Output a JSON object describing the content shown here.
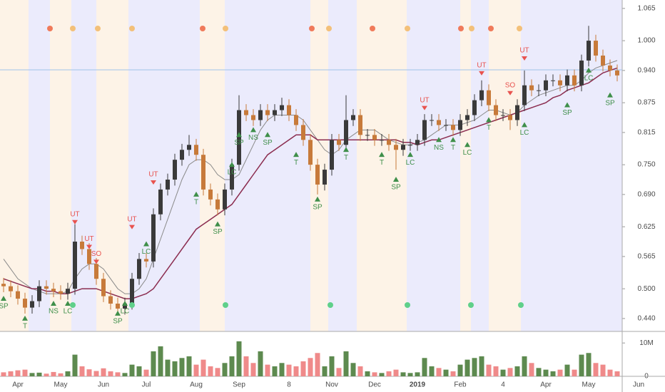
{
  "chart_data": {
    "type": "candlestick",
    "categories": [
      null,
      null,
      "Apr",
      null,
      null,
      null,
      null,
      null,
      "May",
      null,
      null,
      null,
      null,
      null,
      "Jun",
      null,
      null,
      null,
      null,
      null,
      "Jul",
      null,
      null,
      null,
      null,
      null,
      null,
      "Aug",
      null,
      null,
      null,
      null,
      null,
      "Sep",
      null,
      null,
      null,
      null,
      null,
      null,
      "8",
      null,
      null,
      null,
      null,
      null,
      "Nov",
      null,
      null,
      null,
      null,
      null,
      "Dec",
      null,
      null,
      null,
      null,
      null,
      "2019",
      null,
      null,
      null,
      null,
      null,
      "Feb",
      null,
      null,
      null,
      null,
      null,
      "4",
      null,
      null,
      null,
      null,
      null,
      "Apr",
      null,
      null,
      null,
      null,
      null,
      "May",
      null,
      null,
      null,
      null,
      null,
      null,
      "Jun"
    ],
    "open": [
      0.51,
      0.505,
      0.495,
      0.48,
      0.462,
      0.475,
      0.505,
      0.5,
      0.495,
      0.49,
      0.5,
      0.595,
      0.58,
      0.55,
      0.52,
      0.485,
      0.47,
      0.46,
      0.47,
      0.52,
      0.56,
      0.555,
      0.65,
      0.7,
      0.72,
      0.76,
      0.78,
      0.79,
      0.77,
      0.7,
      0.68,
      0.66,
      0.7,
      0.75,
      0.86,
      0.85,
      0.84,
      0.86,
      0.85,
      0.86,
      0.87,
      0.85,
      0.83,
      0.8,
      0.75,
      0.71,
      0.74,
      0.8,
      0.79,
      0.84,
      0.85,
      0.81,
      0.81,
      0.8,
      0.8,
      0.79,
      0.78,
      0.79,
      0.79,
      0.8,
      0.84,
      0.84,
      0.83,
      0.83,
      0.82,
      0.84,
      0.85,
      0.88,
      0.9,
      0.87,
      0.85,
      0.85,
      0.84,
      0.87,
      0.91,
      0.9,
      0.9,
      0.92,
      0.92,
      0.91,
      0.93,
      0.91,
      0.96,
      1.0,
      0.97,
      0.95,
      0.94,
      null,
      null,
      null
    ],
    "high": [
      0.522,
      0.517,
      0.507,
      0.492,
      0.487,
      0.517,
      0.517,
      0.512,
      0.507,
      0.512,
      0.63,
      0.607,
      0.592,
      0.562,
      0.532,
      0.497,
      0.482,
      0.482,
      0.532,
      0.572,
      0.572,
      0.662,
      0.712,
      0.732,
      0.772,
      0.792,
      0.81,
      0.802,
      0.782,
      0.712,
      0.692,
      0.712,
      0.762,
      0.89,
      0.872,
      0.862,
      0.872,
      0.872,
      0.872,
      0.885,
      0.882,
      0.862,
      0.842,
      0.812,
      0.762,
      0.752,
      0.812,
      0.812,
      0.89,
      0.862,
      0.862,
      0.822,
      0.822,
      0.812,
      0.812,
      0.802,
      0.802,
      0.802,
      0.812,
      0.852,
      0.852,
      0.852,
      0.842,
      0.842,
      0.852,
      0.862,
      0.892,
      0.92,
      0.912,
      0.882,
      0.862,
      0.862,
      0.882,
      0.94,
      0.922,
      0.912,
      0.932,
      0.932,
      0.932,
      0.942,
      0.942,
      0.972,
      1.03,
      1.012,
      0.982,
      0.962,
      0.952,
      null,
      null,
      null
    ],
    "low": [
      0.493,
      0.483,
      0.468,
      0.45,
      0.45,
      0.463,
      0.488,
      0.483,
      0.478,
      0.478,
      0.488,
      0.568,
      0.538,
      0.508,
      0.473,
      0.458,
      0.448,
      0.448,
      0.458,
      0.508,
      0.543,
      0.543,
      0.638,
      0.688,
      0.708,
      0.748,
      0.768,
      0.758,
      0.688,
      0.668,
      0.648,
      0.648,
      0.688,
      0.738,
      0.838,
      0.828,
      0.828,
      0.838,
      0.838,
      0.848,
      0.838,
      0.818,
      0.788,
      0.738,
      0.69,
      0.698,
      0.728,
      0.778,
      0.778,
      0.828,
      0.798,
      0.798,
      0.788,
      0.788,
      0.778,
      0.74,
      0.768,
      0.778,
      0.778,
      0.788,
      0.828,
      0.818,
      0.818,
      0.808,
      0.808,
      0.828,
      0.838,
      0.868,
      0.858,
      0.838,
      0.838,
      0.82,
      0.828,
      0.858,
      0.888,
      0.888,
      0.888,
      0.908,
      0.898,
      0.898,
      0.898,
      0.898,
      0.948,
      0.958,
      0.938,
      0.928,
      0.918,
      null,
      null,
      null
    ],
    "close": [
      0.505,
      0.495,
      0.48,
      0.462,
      0.475,
      0.505,
      0.5,
      0.495,
      0.49,
      0.5,
      0.595,
      0.58,
      0.55,
      0.52,
      0.485,
      0.47,
      0.46,
      0.47,
      0.52,
      0.56,
      0.555,
      0.65,
      0.7,
      0.72,
      0.76,
      0.78,
      0.79,
      0.77,
      0.7,
      0.68,
      0.66,
      0.7,
      0.75,
      0.86,
      0.85,
      0.84,
      0.86,
      0.85,
      0.86,
      0.87,
      0.85,
      0.83,
      0.8,
      0.75,
      0.71,
      0.74,
      0.8,
      0.79,
      0.84,
      0.85,
      0.81,
      0.81,
      0.8,
      0.8,
      0.79,
      0.78,
      0.79,
      0.79,
      0.8,
      0.84,
      0.84,
      0.83,
      0.83,
      0.82,
      0.84,
      0.85,
      0.88,
      0.9,
      0.87,
      0.85,
      0.85,
      0.84,
      0.87,
      0.91,
      0.9,
      0.9,
      0.92,
      0.92,
      0.91,
      0.93,
      0.91,
      0.96,
      1.0,
      0.97,
      0.95,
      0.94,
      0.93,
      null,
      null,
      null
    ],
    "volume": [
      1200000,
      1500000,
      1800000,
      2000000,
      1000000,
      1100000,
      800000,
      1300000,
      900000,
      1500000,
      6500000,
      3000000,
      2100000,
      1600000,
      2400000,
      1500000,
      1200000,
      1000000,
      3500000,
      3000000,
      2000000,
      7500000,
      9000000,
      5000000,
      4500000,
      5500000,
      6000000,
      3500000,
      5000000,
      3000000,
      2500000,
      4000000,
      6000000,
      10500000,
      6000000,
      4000000,
      7500000,
      3500000,
      3000000,
      4000000,
      3500000,
      3000000,
      4500000,
      5500000,
      7000000,
      3000000,
      6000000,
      2500000,
      7500000,
      4000000,
      3000000,
      1500000,
      1200000,
      1000000,
      1500000,
      2000000,
      1200000,
      1000000,
      1200000,
      5500000,
      3000000,
      2500000,
      2000000,
      1500000,
      3500000,
      5000000,
      5500000,
      6000000,
      3500000,
      3000000,
      2000000,
      2500000,
      3000000,
      6000000,
      4000000,
      2500000,
      2000000,
      1500000,
      2000000,
      3500000,
      2000000,
      6500000,
      7000000,
      4000000,
      3500000,
      2000000,
      1500000,
      null,
      null,
      null
    ],
    "moving_averages": [
      {
        "color": "#8a8a8a",
        "values": [
          0.56,
          0.54,
          0.52,
          0.51,
          0.5,
          0.495,
          0.49,
          0.49,
          0.49,
          0.495,
          0.52,
          0.54,
          0.55,
          0.55,
          0.54,
          0.52,
          0.5,
          0.49,
          0.49,
          0.5,
          0.52,
          0.56,
          0.6,
          0.64,
          0.68,
          0.72,
          0.75,
          0.76,
          0.76,
          0.75,
          0.73,
          0.72,
          0.72,
          0.73,
          0.76,
          0.79,
          0.82,
          0.84,
          0.85,
          0.85,
          0.85,
          0.85,
          0.84,
          0.82,
          0.8,
          0.78,
          0.77,
          0.78,
          0.8,
          0.81,
          0.82,
          0.82,
          0.82,
          0.81,
          0.8,
          0.795,
          0.79,
          0.79,
          0.795,
          0.8,
          0.81,
          0.82,
          0.83,
          0.83,
          0.83,
          0.835,
          0.84,
          0.85,
          0.86,
          0.86,
          0.855,
          0.85,
          0.855,
          0.87,
          0.88,
          0.89,
          0.895,
          0.9,
          0.905,
          0.91,
          0.91,
          0.92,
          0.935,
          0.945,
          0.95,
          0.955,
          0.96,
          null,
          null,
          null
        ]
      },
      {
        "color": "#8b2c4f",
        "values": [
          0.52,
          0.515,
          0.51,
          0.505,
          0.5,
          0.5,
          0.495,
          0.495,
          0.49,
          0.49,
          0.495,
          0.5,
          0.5,
          0.5,
          0.495,
          0.49,
          0.485,
          0.48,
          0.48,
          0.485,
          0.49,
          0.5,
          0.52,
          0.54,
          0.56,
          0.58,
          0.6,
          0.62,
          0.63,
          0.64,
          0.65,
          0.66,
          0.67,
          0.69,
          0.71,
          0.73,
          0.75,
          0.77,
          0.78,
          0.79,
          0.8,
          0.81,
          0.81,
          0.81,
          0.8,
          0.8,
          0.8,
          0.8,
          0.8,
          0.8,
          0.8,
          0.8,
          0.8,
          0.8,
          0.8,
          0.8,
          0.795,
          0.795,
          0.79,
          0.795,
          0.8,
          0.8,
          0.805,
          0.81,
          0.815,
          0.82,
          0.825,
          0.83,
          0.835,
          0.84,
          0.845,
          0.85,
          0.855,
          0.86,
          0.865,
          0.87,
          0.875,
          0.885,
          0.89,
          0.9,
          0.905,
          0.91,
          0.915,
          0.925,
          0.935,
          0.94,
          0.945,
          null,
          null,
          null
        ]
      }
    ],
    "up_color": "#3a3a3a",
    "down_color": "#c77a3a",
    "volume_up_color": "#5d8a4f",
    "volume_down_color": "#ef8a8a",
    "ylim": [
      0.414,
      1.082
    ],
    "yticks": [
      {
        "value": 1.065,
        "label": "1.065"
      },
      {
        "value": 1.0,
        "label": "1.000"
      },
      {
        "value": 0.94,
        "label": "0.940"
      },
      {
        "value": 0.875,
        "label": "0.875"
      },
      {
        "value": 0.815,
        "label": "0.815"
      },
      {
        "value": 0.75,
        "label": "0.750"
      },
      {
        "value": 0.69,
        "label": "0.690"
      },
      {
        "value": 0.625,
        "label": "0.625"
      },
      {
        "value": 0.565,
        "label": "0.565"
      },
      {
        "value": 0.5,
        "label": "0.500"
      },
      {
        "value": 0.44,
        "label": "0.440"
      }
    ],
    "volume_ylim": [
      0,
      12400000
    ],
    "volume_yticks": [
      {
        "value": 10000000,
        "label": "10M"
      },
      0
    ],
    "annotations": [
      {
        "text": "UT",
        "index": 10,
        "value": 0.65,
        "color": "#e8534f"
      },
      {
        "text": "UT",
        "index": 12,
        "value": 0.6,
        "color": "#e8534f"
      },
      {
        "text": "SO",
        "index": 13,
        "value": 0.57,
        "color": "#e8534f"
      },
      {
        "text": "UT",
        "index": 18,
        "value": 0.64,
        "color": "#e8534f"
      },
      {
        "text": "UT",
        "index": 21,
        "value": 0.73,
        "color": "#e8534f"
      },
      {
        "text": "SP",
        "index": 0,
        "value": 0.47,
        "color": "#3f8f4a"
      },
      {
        "text": "T",
        "index": 3,
        "value": 0.43,
        "color": "#3f8f4a"
      },
      {
        "text": "NS",
        "index": 7,
        "value": 0.46,
        "color": "#3f8f4a"
      },
      {
        "text": "LC",
        "index": 9,
        "value": 0.46,
        "color": "#3f8f4a"
      },
      {
        "text": "SP",
        "index": 16,
        "value": 0.44,
        "color": "#3f8f4a"
      },
      {
        "text": "LC",
        "index": 17,
        "value": 0.46,
        "color": "#3f8f4a"
      },
      {
        "text": "LC",
        "index": 20,
        "value": 0.58,
        "color": "#3f8f4a"
      },
      {
        "text": "T",
        "index": 27,
        "value": 0.68,
        "color": "#3f8f4a"
      },
      {
        "text": "SP",
        "index": 30,
        "value": 0.62,
        "color": "#3f8f4a"
      },
      {
        "text": "LC",
        "index": 32,
        "value": 0.74,
        "color": "#3f8f4a"
      },
      {
        "text": "SP",
        "index": 33,
        "value": 0.8,
        "color": "#3f8f4a"
      },
      {
        "text": "NS",
        "index": 35,
        "value": 0.81,
        "color": "#3f8f4a"
      },
      {
        "text": "SP",
        "index": 37,
        "value": 0.8,
        "color": "#3f8f4a"
      },
      {
        "text": "T",
        "index": 41,
        "value": 0.76,
        "color": "#3f8f4a"
      },
      {
        "text": "SP",
        "index": 44,
        "value": 0.67,
        "color": "#3f8f4a"
      },
      {
        "text": "T",
        "index": 48,
        "value": 0.77,
        "color": "#3f8f4a"
      },
      {
        "text": "T",
        "index": 53,
        "value": 0.76,
        "color": "#3f8f4a"
      },
      {
        "text": "SP",
        "index": 55,
        "value": 0.71,
        "color": "#3f8f4a"
      },
      {
        "text": "LC",
        "index": 57,
        "value": 0.76,
        "color": "#3f8f4a"
      },
      {
        "text": "UT",
        "index": 59,
        "value": 0.88,
        "color": "#e8534f"
      },
      {
        "text": "NS",
        "index": 61,
        "value": 0.79,
        "color": "#3f8f4a"
      },
      {
        "text": "T",
        "index": 63,
        "value": 0.79,
        "color": "#3f8f4a"
      },
      {
        "text": "LC",
        "index": 65,
        "value": 0.78,
        "color": "#3f8f4a"
      },
      {
        "text": "UT",
        "index": 67,
        "value": 0.95,
        "color": "#e8534f"
      },
      {
        "text": "T",
        "index": 68,
        "value": 0.83,
        "color": "#3f8f4a"
      },
      {
        "text": "SO",
        "index": 71,
        "value": 0.91,
        "color": "#e8534f"
      },
      {
        "text": "UT",
        "index": 73,
        "value": 0.98,
        "color": "#e8534f"
      },
      {
        "text": "LC",
        "index": 73,
        "value": 0.82,
        "color": "#3f8f4a"
      },
      {
        "text": "SP",
        "index": 79,
        "value": 0.86,
        "color": "#3f8f4a"
      },
      {
        "text": "LC",
        "index": 82,
        "value": 0.93,
        "color": "#3f8f4a"
      },
      {
        "text": "SP",
        "index": 85,
        "value": 0.88,
        "color": "#3f8f4a"
      }
    ]
  }
}
